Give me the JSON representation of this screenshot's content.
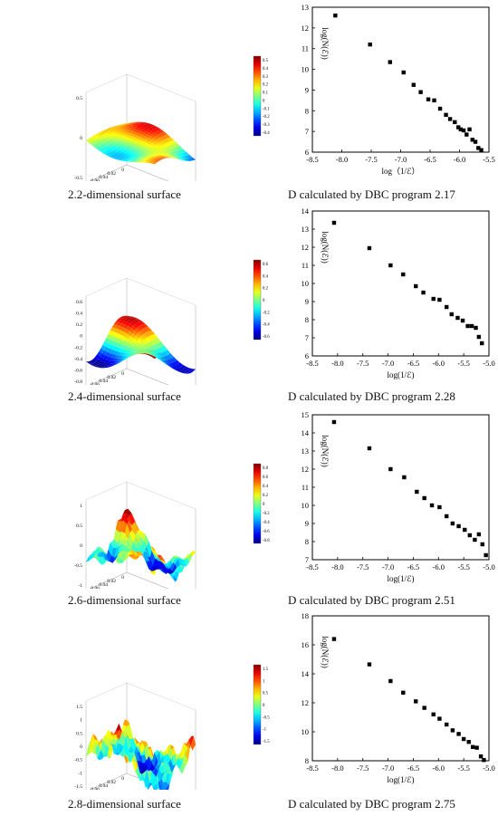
{
  "panels": [
    {
      "surface_caption": "2.2-dimensional surface",
      "scatter_caption": "D calculated by DBC program 2.17",
      "surface": {
        "z_ticks": [
          "0.5",
          "0",
          "-0.5"
        ],
        "left_ticks": [
          "0.1",
          "0.08",
          "0.06",
          "0.04",
          "0.02",
          "0"
        ],
        "right_ticks": [
          "0",
          "0.02",
          "0.04",
          "0.06",
          "0.08",
          "0.1"
        ],
        "colorbar_ticks": [
          "0.5",
          "0.4",
          "0.3",
          "0.2",
          "0.1",
          "0",
          "-0.1",
          "-0.2",
          "-0.3",
          "-0.4"
        ],
        "amp": 0.4,
        "peaks": 2
      }
    },
    {
      "surface_caption": "2.4-dimensional surface",
      "scatter_caption": "D calculated by DBC program 2.28",
      "surface": {
        "z_ticks": [
          "0.6",
          "0.4",
          "0.2",
          "0",
          "-0.2",
          "-0.4",
          "-0.6",
          "-0.8"
        ],
        "left_ticks": [
          "0.1",
          "0.08",
          "0.06",
          "0.04",
          "0.02",
          "0"
        ],
        "right_ticks": [
          "0",
          "0.02",
          "0.04",
          "0.06",
          "0.08",
          "0.1"
        ],
        "colorbar_ticks": [
          "0.6",
          "0.4",
          "0.2",
          "0",
          "-0.2",
          "-0.4",
          "-0.6"
        ],
        "amp": 0.55,
        "peaks": 4
      }
    },
    {
      "surface_caption": "2.6-dimensional surface",
      "scatter_caption": "D calculated by DBC program 2.51",
      "surface": {
        "z_ticks": [
          "1",
          "0.5",
          "0",
          "-0.5",
          "-1"
        ],
        "left_ticks": [
          "0.1",
          "0.08",
          "0.06",
          "0.04",
          "0.02",
          "0"
        ],
        "right_ticks": [
          "0",
          "0.02",
          "0.04",
          "0.06",
          "0.08",
          "0.1"
        ],
        "colorbar_ticks": [
          "0.8",
          "0.6",
          "0.4",
          "0.2",
          "0",
          "-0.2",
          "-0.4",
          "-0.6",
          "-0.8"
        ],
        "amp": 0.75,
        "peaks": 8
      }
    },
    {
      "surface_caption": "2.8-dimensional surface",
      "scatter_caption": "D calculated by DBC program 2.75",
      "surface": {
        "z_ticks": [
          "1.5",
          "1",
          "0.5",
          "0",
          "-0.5",
          "-1",
          "-1.5"
        ],
        "left_ticks": [
          "0.1",
          "0.08",
          "0.06",
          "0.04",
          "0.02",
          "0"
        ],
        "right_ticks": [
          "0",
          "0.02",
          "0.04",
          "0.06",
          "0.08",
          "0.1"
        ],
        "colorbar_ticks": [
          "1.5",
          "1",
          "0.5",
          "0",
          "-0.5",
          "-1",
          "-1.5"
        ],
        "amp": 0.9,
        "peaks": 14
      }
    }
  ],
  "chart_data": [
    {
      "type": "scatter",
      "xlabel": "log（1/ℰ）",
      "ylabel": "log(N(ℰ))",
      "xlim": [
        -8.5,
        -5.5
      ],
      "ylim": [
        6,
        13
      ],
      "xticks": [
        -8.5,
        -8,
        -7.5,
        -7,
        -6.5,
        -6,
        -5.5
      ],
      "yticks": [
        6,
        7,
        8,
        9,
        10,
        11,
        12,
        13
      ],
      "xtick_labels": [
        "-8.5",
        "-8.0",
        "-7.5",
        "-7.0",
        "-6.5",
        "-6.0",
        "-5.5"
      ],
      "ytick_labels": [
        "6",
        "7",
        "8",
        "9",
        "10",
        "11",
        "12",
        "13"
      ],
      "x": [
        -8.11,
        -7.52,
        -7.18,
        -6.95,
        -6.78,
        -6.66,
        -6.53,
        -6.43,
        -6.33,
        -6.23,
        -6.16,
        -6.08,
        -6.02,
        -5.98,
        -5.93,
        -5.88,
        -5.83,
        -5.78,
        -5.73,
        -5.68,
        -5.63
      ],
      "y": [
        12.6,
        11.2,
        10.35,
        9.85,
        9.25,
        8.9,
        8.55,
        8.5,
        8.1,
        7.8,
        7.6,
        7.45,
        7.2,
        7.1,
        7.05,
        6.85,
        7.1,
        6.6,
        6.5,
        6.2,
        6.1
      ]
    },
    {
      "type": "scatter",
      "xlabel": "log(1/ℰ)",
      "ylabel": "log(N(ℰ))",
      "xlim": [
        -8.5,
        -5.0
      ],
      "ylim": [
        6,
        14
      ],
      "xticks": [
        -8.5,
        -8,
        -7.5,
        -7,
        -6.5,
        -6,
        -5.5,
        -5
      ],
      "yticks": [
        6,
        7,
        8,
        9,
        10,
        11,
        12,
        13,
        14
      ],
      "xtick_labels": [
        "-8.5",
        "-8.0",
        "-7.5",
        "-7.0",
        "-6.5",
        "-6.0",
        "-5.5",
        "-5.0"
      ],
      "ytick_labels": [
        "6",
        "7",
        "8",
        "9",
        "10",
        "11",
        "12",
        "13",
        "14"
      ],
      "x": [
        -8.07,
        -7.37,
        -6.95,
        -6.7,
        -6.45,
        -6.3,
        -6.1,
        -5.98,
        -5.84,
        -5.74,
        -5.62,
        -5.52,
        -5.42,
        -5.34,
        -5.26,
        -5.2,
        -5.14
      ],
      "y": [
        13.35,
        11.95,
        11.0,
        10.5,
        9.85,
        9.5,
        9.15,
        9.1,
        8.7,
        8.3,
        8.1,
        7.95,
        7.65,
        7.65,
        7.55,
        7.05,
        6.7
      ]
    },
    {
      "type": "scatter",
      "xlabel": "log(1/ℰ)",
      "ylabel": "log(N(ℰ))",
      "xlim": [
        -8.5,
        -5.0
      ],
      "ylim": [
        7,
        15
      ],
      "xticks": [
        -8.5,
        -8,
        -7.5,
        -7,
        -6.5,
        -6,
        -5.5,
        -5
      ],
      "yticks": [
        7,
        8,
        9,
        10,
        11,
        12,
        13,
        14,
        15
      ],
      "xtick_labels": [
        "-8.5",
        "-8.0",
        "-7.5",
        "-7.0",
        "-6.5",
        "-6.0",
        "-5.5",
        "-5.0"
      ],
      "ytick_labels": [
        "7",
        "8",
        "9",
        "10",
        "11",
        "12",
        "13",
        "14",
        "15"
      ],
      "x": [
        -8.07,
        -7.37,
        -6.95,
        -6.68,
        -6.43,
        -6.28,
        -6.13,
        -5.98,
        -5.84,
        -5.72,
        -5.6,
        -5.48,
        -5.38,
        -5.28,
        -5.2,
        -5.13,
        -5.06
      ],
      "y": [
        14.6,
        13.15,
        12.0,
        11.55,
        10.75,
        10.4,
        10.0,
        9.9,
        9.4,
        9.0,
        8.85,
        8.65,
        8.35,
        8.1,
        8.4,
        7.85,
        7.25
      ]
    },
    {
      "type": "scatter",
      "xlabel": "log(1/ℰ)",
      "ylabel": "log(N(ℰ))",
      "xlim": [
        -8.5,
        -5.0
      ],
      "ylim": [
        8,
        18
      ],
      "xticks": [
        -8.5,
        -8,
        -7.5,
        -7,
        -6.5,
        -6,
        -5.5,
        -5
      ],
      "yticks": [
        8,
        10,
        12,
        14,
        16,
        18
      ],
      "xtick_labels": [
        "-8.5",
        "-8.0",
        "-7.5",
        "-7.0",
        "-6.5",
        "-6.0",
        "-5.5",
        "-5.0"
      ],
      "ytick_labels": [
        "8",
        "10",
        "12",
        "14",
        "16",
        "18"
      ],
      "x": [
        -8.07,
        -7.37,
        -6.95,
        -6.7,
        -6.45,
        -6.28,
        -6.1,
        -5.98,
        -5.84,
        -5.72,
        -5.6,
        -5.5,
        -5.4,
        -5.32,
        -5.24,
        -5.16,
        -5.1
      ],
      "y": [
        16.4,
        14.65,
        13.5,
        12.7,
        12.1,
        11.65,
        11.2,
        10.9,
        10.5,
        10.1,
        9.85,
        9.5,
        9.3,
        8.95,
        8.9,
        8.3,
        8.05
      ]
    }
  ]
}
